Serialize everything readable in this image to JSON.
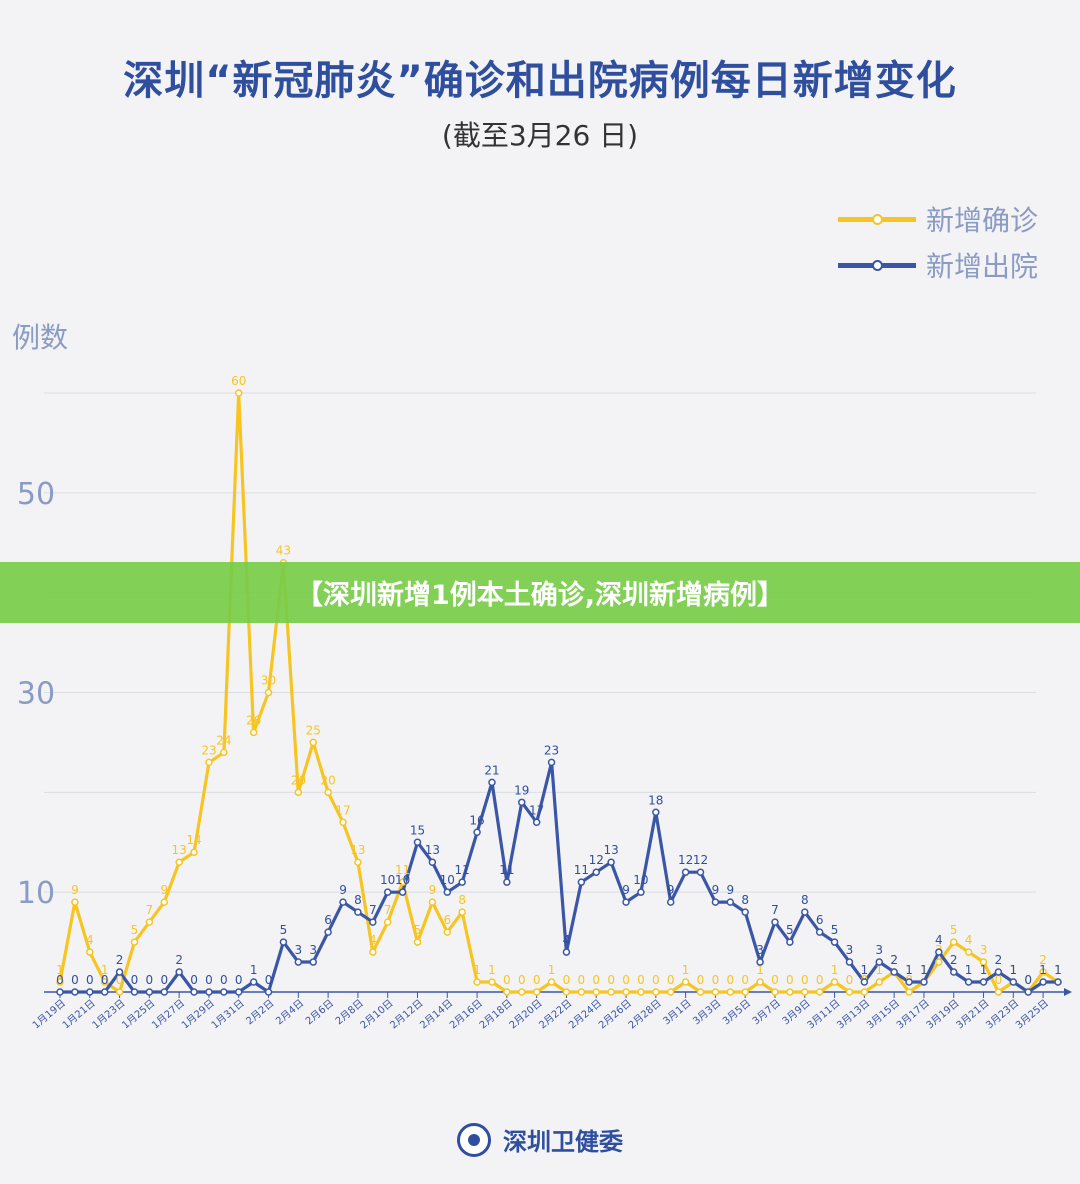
{
  "header": {
    "title": "深圳“新冠肺炎”确诊和出院病例每日新增变化",
    "subtitle": "(截至3月26 日)"
  },
  "banner": {
    "text": "【深圳新增1例本土确诊,深圳新增病例】"
  },
  "footer": {
    "org": "深圳卫健委"
  },
  "colors": {
    "confirmed": "#f7c522",
    "discharged": "#3a56a6"
  },
  "chart_data": {
    "type": "line",
    "title": "深圳“新冠肺炎”确诊和出院病例每日新增变化",
    "subtitle": "(截至3月26 日)",
    "ylabel": "例数",
    "xlabel": "",
    "ylim": [
      0,
      60
    ],
    "yticks": [
      10,
      30,
      50
    ],
    "grid": true,
    "legend_position": "top-right",
    "x": [
      "1月19日",
      "1月20日",
      "1月21日",
      "1月22日",
      "1月23日",
      "1月24日",
      "1月25日",
      "1月26日",
      "1月27日",
      "1月28日",
      "1月29日",
      "1月30日",
      "1月31日",
      "2月1日",
      "2月2日",
      "2月3日",
      "2月4日",
      "2月5日",
      "2月6日",
      "2月7日",
      "2月8日",
      "2月9日",
      "2月10日",
      "2月11日",
      "2月12日",
      "2月13日",
      "2月14日",
      "2月15日",
      "2月16日",
      "2月17日",
      "2月18日",
      "2月19日",
      "2月20日",
      "2月21日",
      "2月22日",
      "2月23日",
      "2月24日",
      "2月25日",
      "2月26日",
      "2月27日",
      "2月28日",
      "2月29日",
      "3月1日",
      "3月2日",
      "3月3日",
      "3月4日",
      "3月5日",
      "3月6日",
      "3月7日",
      "3月8日",
      "3月9日",
      "3月10日",
      "3月11日",
      "3月12日",
      "3月13日",
      "3月14日",
      "3月15日",
      "3月16日",
      "3月17日",
      "3月18日",
      "3月19日",
      "3月20日",
      "3月21日",
      "3月22日",
      "3月23日",
      "3月24日",
      "3月25日",
      "3月26日"
    ],
    "x_tick_labels": [
      "1月19日",
      "1月21日",
      "1月23日",
      "1月25日",
      "1月27日",
      "1月29日",
      "1月31日",
      "2月2日",
      "2月4日",
      "2月6日",
      "2月8日",
      "2月10日",
      "2月12日",
      "2月14日",
      "2月16日",
      "2月18日",
      "2月20日",
      "2月22日",
      "2月24日",
      "2月26日",
      "2月28日",
      "3月1日",
      "3月3日",
      "3月5日",
      "3月7日",
      "3月9日",
      "3月11日",
      "3月13日",
      "3月15日",
      "3月17日",
      "3月19日",
      "3月21日",
      "3月23日",
      "3月25日"
    ],
    "series": [
      {
        "name": "新增确诊",
        "values": [
          1,
          9,
          4,
          1,
          0,
          5,
          7,
          9,
          13,
          14,
          23,
          24,
          60,
          26,
          30,
          43,
          20,
          25,
          20,
          17,
          13,
          4,
          7,
          11,
          5,
          9,
          6,
          8,
          1,
          1,
          0,
          0,
          0,
          1,
          0,
          0,
          0,
          0,
          0,
          0,
          0,
          0,
          1,
          0,
          0,
          0,
          0,
          1,
          0,
          0,
          0,
          0,
          1,
          0,
          0,
          1,
          2,
          0,
          1,
          3,
          5,
          4,
          3,
          0,
          1,
          0,
          2,
          1
        ]
      },
      {
        "name": "新增出院",
        "values": [
          0,
          0,
          0,
          0,
          2,
          0,
          0,
          0,
          2,
          0,
          0,
          0,
          0,
          1,
          0,
          5,
          3,
          3,
          6,
          9,
          8,
          7,
          10,
          10,
          15,
          13,
          10,
          11,
          16,
          21,
          11,
          19,
          17,
          23,
          4,
          11,
          12,
          13,
          9,
          10,
          18,
          9,
          12,
          12,
          9,
          9,
          8,
          3,
          7,
          5,
          8,
          6,
          5,
          3,
          1,
          3,
          2,
          1,
          1,
          4,
          2,
          1,
          1,
          2,
          1,
          0,
          1,
          1
        ]
      }
    ]
  }
}
